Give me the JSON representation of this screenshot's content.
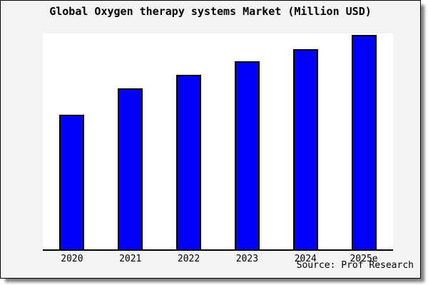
{
  "card": {
    "background": "#f3f3f3",
    "border_color": "#000000",
    "shadow_color": "#888888"
  },
  "chart_data": {
    "type": "bar",
    "title": "Global Oxygen therapy systems Market (Million USD)",
    "categories": [
      "2020",
      "2021",
      "2022",
      "2023",
      "2024",
      "2025e"
    ],
    "values_relative_pct_of_max": [
      62.7,
      75.0,
      81.4,
      87.6,
      93.5,
      100
    ],
    "ylim": [
      0,
      100.7
    ],
    "xlabel": "",
    "ylabel": "",
    "y_axis_labels_visible": false,
    "gridlines": false,
    "legend_position": "none",
    "bar_fill": "#0000ff",
    "bar_border": "#000000",
    "axis_line_color": "#000000",
    "plot_background": "#ffffff"
  },
  "source": {
    "text": "Source: Prof Research"
  }
}
